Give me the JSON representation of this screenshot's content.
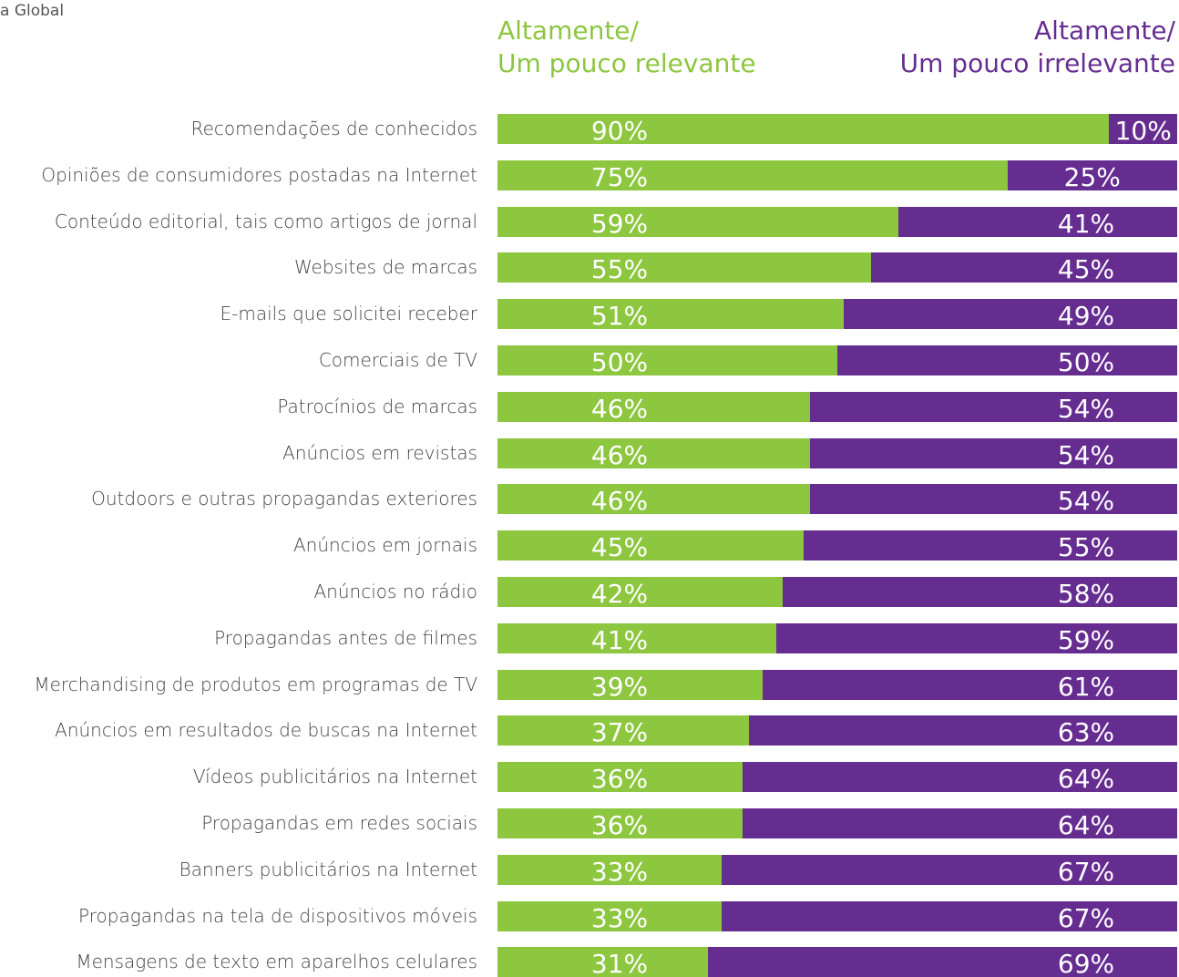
{
  "chart_data": {
    "type": "stacked-bar-horizontal",
    "note_text": "a Global",
    "categories": [
      "Recomendações de conhecidos",
      "Opiniões de consumidores postadas na Internet",
      "Conteúdo editorial, tais como artigos de jornal",
      "Websites de marcas",
      "E-mails que solicitei receber",
      "Comerciais de TV",
      "Patrocínios de marcas",
      "Anúncios em revistas",
      "Outdoors e outras propagandas exteriores",
      "Anúncios em jornais",
      "Anúncios no rádio",
      "Propagandas antes de filmes",
      "Merchandising de produtos em programas de TV",
      "Anúncios em resultados de buscas na Internet",
      "Vídeos publicitários na Internet",
      "Propagandas em redes sociais",
      "Banners publicitários na Internet",
      "Propagandas na tela de dispositivos móveis",
      "Mensagens de texto em aparelhos celulares"
    ],
    "xlim": [
      0,
      100
    ],
    "series": [
      {
        "name": "Altamente/\nUm pouco relevante",
        "color": "#8dc63f",
        "values": [
          90,
          75,
          59,
          55,
          51,
          50,
          46,
          46,
          46,
          45,
          42,
          41,
          39,
          37,
          36,
          36,
          33,
          33,
          31
        ],
        "value_labels": [
          "90%",
          "75%",
          "59%",
          "55%",
          "51%",
          "50%",
          "46%",
          "46%",
          "46%",
          "45%",
          "42%",
          "41%",
          "39%",
          "37%",
          "36%",
          "36%",
          "33%",
          "33%",
          "31%"
        ]
      },
      {
        "name": "Altamente/\nUm pouco irrelevante",
        "color": "#662d91",
        "values": [
          10,
          25,
          41,
          45,
          49,
          50,
          54,
          54,
          54,
          55,
          58,
          59,
          61,
          63,
          64,
          64,
          67,
          67,
          69
        ],
        "value_labels": [
          "10%",
          "25%",
          "41%",
          "45%",
          "49%",
          "50%",
          "54%",
          "54%",
          "54%",
          "55%",
          "58%",
          "59%",
          "61%",
          "63%",
          "64%",
          "64%",
          "67%",
          "67%",
          "69%"
        ]
      }
    ]
  }
}
